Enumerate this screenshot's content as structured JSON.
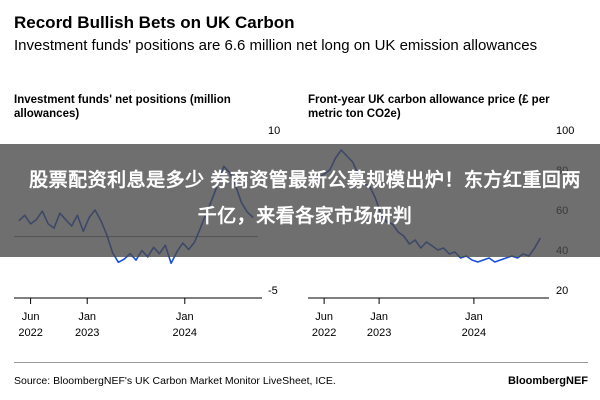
{
  "header": {
    "title": "Record Bullish Bets on UK Carbon",
    "subtitle": "Investment funds' positions are 6.6 million net long on UK emission allowances"
  },
  "overlay": {
    "text": "股票配资利息是多少 券商资管最新公募规模出炉！东方红重回两千亿，来看各家市场研判"
  },
  "footer": {
    "source": "Source: BloombergNEF's UK Carbon Market Monitor LiveSheet, ICE.",
    "brand": "BloombergNEF"
  },
  "colors": {
    "line": "#1a4fd8",
    "zero_line": "#777777",
    "text": "#000000"
  },
  "chart_data": [
    {
      "type": "line",
      "title": "Investment funds' net positions (million allowances)",
      "xlabel": "",
      "ylabel": "",
      "ylim": [
        -5,
        10
      ],
      "yticks": [
        10,
        "",
        "",
        -5
      ],
      "xticks": [
        {
          "value": 2022.42,
          "line1": "Jun",
          "line2": "2022"
        },
        {
          "value": 2023.0,
          "line1": "Jan",
          "line2": "2023"
        },
        {
          "value": 2024.0,
          "line1": "Jan",
          "line2": "2024"
        }
      ],
      "xlim": [
        2022.25,
        2024.75
      ],
      "zero_line": 0,
      "series": [
        {
          "x": [
            2022.3,
            2022.36,
            2022.42,
            2022.48,
            2022.54,
            2022.6,
            2022.66,
            2022.72,
            2022.78,
            2022.84,
            2022.9,
            2022.96,
            2023.02,
            2023.08,
            2023.14,
            2023.2,
            2023.26,
            2023.32,
            2023.38,
            2023.44,
            2023.5,
            2023.56,
            2023.62,
            2023.68,
            2023.74,
            2023.8,
            2023.86,
            2023.92,
            2023.98,
            2024.04,
            2024.1,
            2024.16,
            2024.22,
            2024.28,
            2024.34,
            2024.4,
            2024.46,
            2024.52,
            2024.58,
            2024.64,
            2024.7
          ],
          "y": [
            1.5,
            2.0,
            1.2,
            1.6,
            2.4,
            1.2,
            0.8,
            2.2,
            1.6,
            1.0,
            2.0,
            0.5,
            1.8,
            2.5,
            1.5,
            0.2,
            -1.5,
            -2.4,
            -2.1,
            -1.6,
            -2.2,
            -1.3,
            -1.9,
            -1.0,
            -1.6,
            -0.8,
            -2.5,
            -1.4,
            -0.6,
            -1.2,
            -0.5,
            0.8,
            2.2,
            3.5,
            5.0,
            6.6,
            6.0,
            4.8,
            3.2,
            2.3,
            1.8
          ]
        }
      ]
    },
    {
      "type": "line",
      "title": "Front-year UK carbon allowance price (£ per metric ton CO2e)",
      "xlabel": "",
      "ylabel": "",
      "ylim": [
        20,
        100
      ],
      "yticks": [
        100,
        80,
        60,
        40,
        20
      ],
      "xticks": [
        {
          "value": 2022.42,
          "line1": "Jun",
          "line2": "2022"
        },
        {
          "value": 2023.0,
          "line1": "Jan",
          "line2": "2023"
        },
        {
          "value": 2024.0,
          "line1": "Jan",
          "line2": "2024"
        }
      ],
      "xlim": [
        2022.25,
        2024.75
      ],
      "series": [
        {
          "x": [
            2022.3,
            2022.36,
            2022.42,
            2022.48,
            2022.54,
            2022.6,
            2022.66,
            2022.72,
            2022.78,
            2022.84,
            2022.9,
            2022.96,
            2023.02,
            2023.08,
            2023.14,
            2023.2,
            2023.26,
            2023.32,
            2023.38,
            2023.44,
            2023.5,
            2023.56,
            2023.62,
            2023.68,
            2023.74,
            2023.8,
            2023.86,
            2023.92,
            2023.98,
            2024.04,
            2024.1,
            2024.16,
            2024.22,
            2024.28,
            2024.34,
            2024.4,
            2024.46,
            2024.52,
            2024.58,
            2024.64,
            2024.7
          ],
          "y": [
            72,
            76,
            78,
            80,
            86,
            90,
            87,
            84,
            78,
            73,
            72,
            66,
            58,
            54,
            53,
            49,
            47,
            43,
            45,
            41,
            44,
            42,
            40,
            41,
            38,
            39,
            36,
            37,
            35,
            34,
            35,
            36,
            34,
            35,
            36,
            37,
            36,
            38,
            37,
            41,
            46
          ]
        }
      ]
    }
  ]
}
